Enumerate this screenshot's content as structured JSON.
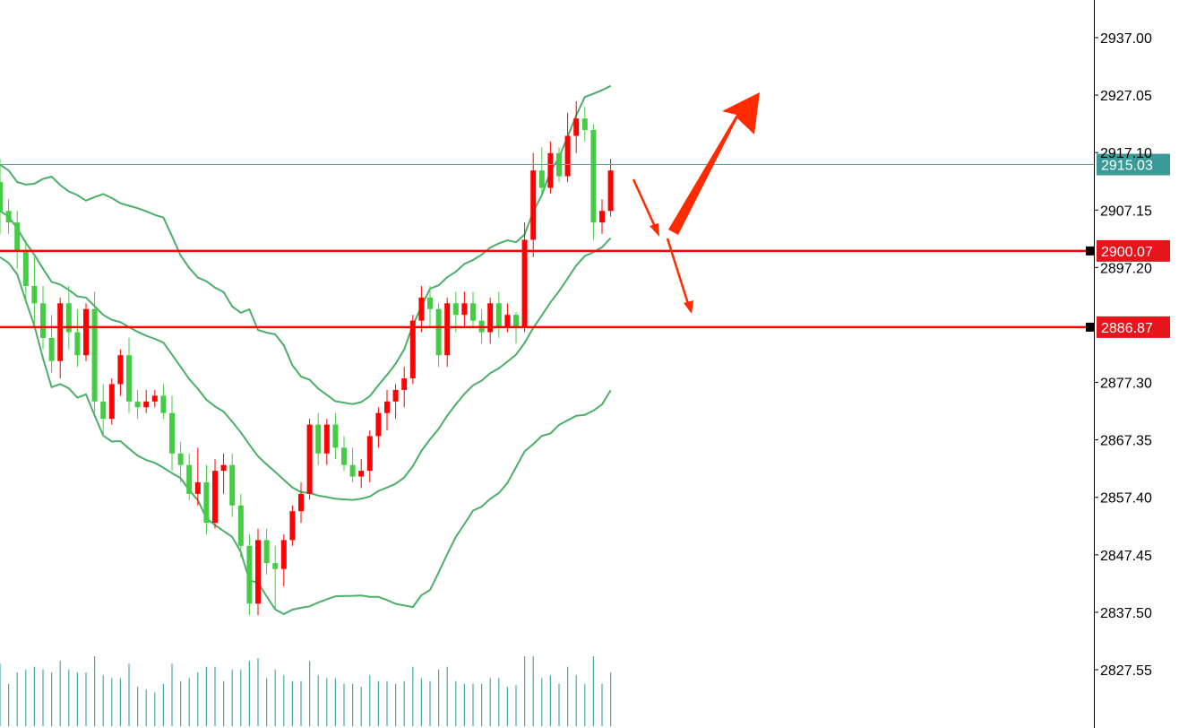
{
  "chart_data": {
    "type": "candlestick",
    "y_axis": {
      "ticks": [
        "2937.00",
        "2927.05",
        "2917.10",
        "2907.15",
        "2897.20",
        "2877.30",
        "2867.35",
        "2857.40",
        "2847.45",
        "2837.50",
        "2827.55"
      ],
      "range": [
        2816.0,
        2943.0
      ]
    },
    "current_price": {
      "label": "2915.03",
      "value": 2915.03
    },
    "horizontal_levels": [
      {
        "label": "2900.07",
        "value": 2900.07
      },
      {
        "label": "2886.87",
        "value": 2886.87
      }
    ],
    "candles": [
      [
        2912.0,
        2916.0,
        2903.0,
        2907.0
      ],
      [
        2907.0,
        2909.0,
        2903.0,
        2905.0
      ],
      [
        2905.0,
        2907.0,
        2897.0,
        2900.0
      ],
      [
        2900.0,
        2902.0,
        2891.0,
        2894.0
      ],
      [
        2894.0,
        2899.0,
        2887.0,
        2891.0
      ],
      [
        2891.0,
        2894.0,
        2883.0,
        2885.0
      ],
      [
        2885.0,
        2889.0,
        2879.0,
        2881.0
      ],
      [
        2881.0,
        2892.0,
        2878.0,
        2891.0
      ],
      [
        2891.0,
        2894.0,
        2883.0,
        2886.0
      ],
      [
        2886.0,
        2890.0,
        2880.0,
        2882.0
      ],
      [
        2882.0,
        2891.0,
        2881.0,
        2890.0
      ],
      [
        2890.0,
        2893.0,
        2872.0,
        2874.0
      ],
      [
        2874.0,
        2877.0,
        2868.0,
        2871.0
      ],
      [
        2871.0,
        2878.0,
        2870.0,
        2877.0
      ],
      [
        2877.0,
        2883.0,
        2875.0,
        2882.0
      ],
      [
        2882.0,
        2885.0,
        2872.0,
        2874.0
      ],
      [
        2874.0,
        2876.0,
        2871.0,
        2873.0
      ],
      [
        2873.0,
        2876.0,
        2872.0,
        2874.0
      ],
      [
        2874.0,
        2876.0,
        2873.0,
        2875.0
      ],
      [
        2875.0,
        2877.0,
        2871.0,
        2872.0
      ],
      [
        2872.0,
        2875.0,
        2862.0,
        2865.0
      ],
      [
        2865.0,
        2867.0,
        2860.0,
        2863.0
      ],
      [
        2863.0,
        2865.0,
        2857.0,
        2858.0
      ],
      [
        2858.0,
        2866.0,
        2856.0,
        2860.0
      ],
      [
        2860.0,
        2863.0,
        2851.0,
        2853.0
      ],
      [
        2853.0,
        2864.0,
        2852.0,
        2862.0
      ],
      [
        2862.0,
        2865.0,
        2858.0,
        2863.0
      ],
      [
        2863.0,
        2865.0,
        2854.0,
        2856.0
      ],
      [
        2856.0,
        2858.0,
        2847.0,
        2849.0
      ],
      [
        2849.0,
        2851.0,
        2837.0,
        2839.0
      ],
      [
        2839.0,
        2852.0,
        2837.0,
        2850.0
      ],
      [
        2850.0,
        2852.0,
        2844.0,
        2846.0
      ],
      [
        2846.0,
        2849.0,
        2838.0,
        2845.0
      ],
      [
        2845.0,
        2851.0,
        2842.0,
        2850.0
      ],
      [
        2850.0,
        2856.0,
        2849.0,
        2855.0
      ],
      [
        2855.0,
        2860.0,
        2853.0,
        2858.0
      ],
      [
        2858.0,
        2871.0,
        2857.0,
        2870.0
      ],
      [
        2870.0,
        2872.0,
        2863.0,
        2865.0
      ],
      [
        2865.0,
        2871.0,
        2863.0,
        2870.0
      ],
      [
        2870.0,
        2872.0,
        2864.0,
        2866.0
      ],
      [
        2866.0,
        2868.0,
        2862.0,
        2863.0
      ],
      [
        2863.0,
        2866.0,
        2860.0,
        2861.0
      ],
      [
        2861.0,
        2864.0,
        2859.0,
        2862.0
      ],
      [
        2862.0,
        2869.0,
        2860.0,
        2868.0
      ],
      [
        2868.0,
        2873.0,
        2866.0,
        2872.0
      ],
      [
        2872.0,
        2876.0,
        2869.0,
        2874.0
      ],
      [
        2874.0,
        2877.0,
        2871.0,
        2876.0
      ],
      [
        2876.0,
        2880.0,
        2873.0,
        2878.0
      ],
      [
        2878.0,
        2889.0,
        2877.0,
        2888.0
      ],
      [
        2888.0,
        2894.0,
        2886.0,
        2892.0
      ],
      [
        2892.0,
        2894.0,
        2887.0,
        2890.0
      ],
      [
        2890.0,
        2891.0,
        2880.0,
        2882.0
      ],
      [
        2882.0,
        2892.0,
        2880.0,
        2891.0
      ],
      [
        2891.0,
        2893.0,
        2886.0,
        2889.0
      ],
      [
        2889.0,
        2893.0,
        2887.0,
        2891.0
      ],
      [
        2891.0,
        2893.0,
        2887.0,
        2888.0
      ],
      [
        2888.0,
        2890.0,
        2884.0,
        2886.0
      ],
      [
        2886.0,
        2892.0,
        2884.0,
        2891.0
      ],
      [
        2891.0,
        2893.0,
        2885.0,
        2887.0
      ],
      [
        2887.0,
        2891.0,
        2886.0,
        2889.0
      ],
      [
        2889.0,
        2889.5,
        2884.0,
        2887.0
      ],
      [
        2887.0,
        2905.0,
        2886.0,
        2902.0
      ],
      [
        2902.0,
        2917.0,
        2899.0,
        2914.0
      ],
      [
        2914.0,
        2918.0,
        2910.0,
        2911.0
      ],
      [
        2911.0,
        2919.0,
        2910.0,
        2917.0
      ],
      [
        2917.0,
        2918.0,
        2912.0,
        2913.0
      ],
      [
        2913.0,
        2924.0,
        2912.0,
        2920.0
      ],
      [
        2920.0,
        2926.0,
        2917.0,
        2923.0
      ],
      [
        2923.0,
        2925.0,
        2919.0,
        2921.0
      ],
      [
        2921.0,
        2922.0,
        2902.0,
        2905.0
      ],
      [
        2905.0,
        2909.0,
        2903.0,
        2907.0
      ],
      [
        2907.0,
        2916.0,
        2906.0,
        2914.0
      ]
    ],
    "indicator": "Bollinger Bands",
    "volume_bars": true,
    "grid": false
  }
}
